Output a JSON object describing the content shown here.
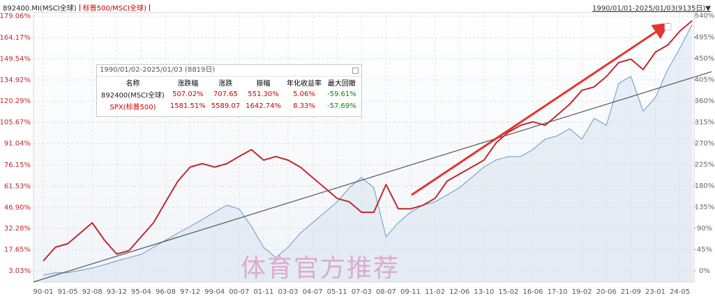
{
  "header": {
    "range": "1990/01/01-2025/01/03(9135日)▼"
  },
  "watermark": "体育官方推荐",
  "info_box": {
    "title": "1990/01/02-2025/01/03 (8819日)",
    "headers": [
      "名称",
      "涨跌幅",
      "涨跌",
      "振幅",
      "年化收益率",
      "最大回撤"
    ],
    "rows": [
      [
        "892400(MSCI全球)",
        "507.02%",
        "707.65",
        "551.30%",
        "5.06%",
        "-59.61%"
      ],
      [
        "SPX(标普500)",
        "1581.51%",
        "5589.07",
        "1642.74%",
        "8.33%",
        "-57.69%"
      ]
    ]
  },
  "chart_data": {
    "type": "line",
    "categories": [
      "90-01",
      null,
      "91-05",
      null,
      "92-08",
      null,
      "93-12",
      null,
      "95-04",
      null,
      "96-08",
      null,
      "97-12",
      null,
      "99-04",
      null,
      "00-07",
      null,
      "01-11",
      null,
      "03-03",
      null,
      "04-07",
      null,
      "05-11",
      null,
      "07-03",
      null,
      "08-07",
      null,
      "09-11",
      null,
      "11-02",
      null,
      "12-06",
      null,
      "13-10",
      null,
      "15-02",
      null,
      "16-06",
      null,
      "17-10",
      null,
      "19-02",
      null,
      "20-06",
      null,
      "21-09",
      null,
      "23-01",
      null,
      "24-05",
      null
    ],
    "series": [
      {
        "name": "892400.MI(MSCI全球)",
        "color": "#6f9fcf",
        "axis": "y2",
        "values": [
          -9,
          -4,
          -4,
          1,
          6,
          13,
          21,
          28,
          35,
          50,
          65,
          80,
          94,
          109,
          124,
          139,
          131,
          94,
          50,
          28,
          50,
          80,
          102,
          124,
          146,
          176,
          198,
          176,
          72,
          102,
          124,
          139,
          146,
          161,
          176,
          198,
          220,
          235,
          242,
          242,
          257,
          279,
          286,
          301,
          279,
          323,
          308,
          397,
          412,
          338,
          367,
          426,
          471,
          522
        ]
      },
      {
        "name": "标普500/MSCI全球)",
        "color": "#c0282d",
        "values": [
          9.8,
          19.4,
          21.8,
          29,
          36.2,
          24.2,
          14.6,
          17,
          26.6,
          36.2,
          50.7,
          65.1,
          74.7,
          77.1,
          74.7,
          77.1,
          82,
          86.8,
          79.5,
          82,
          79.5,
          74.7,
          67.5,
          60.3,
          53.1,
          50.7,
          43.5,
          43.5,
          62.7,
          45.9,
          45.9,
          48.3,
          53.1,
          65.1,
          69.9,
          74.7,
          79.5,
          91.6,
          98.8,
          103.6,
          106,
          103.6,
          110.8,
          118.1,
          127.7,
          130.1,
          137.3,
          146.9,
          149.3,
          142.1,
          154.1,
          159,
          168.6,
          175.8
        ]
      }
    ],
    "ylim": [
      -4.67,
      181.5
    ],
    "yticks": [
      {
        "value": 3.03,
        "label": "3.03%"
      },
      {
        "value": 17.65,
        "label": "17.65%"
      },
      {
        "value": 32.28,
        "label": "32.28%"
      },
      {
        "value": 46.9,
        "label": "46.90%"
      },
      {
        "value": 61.53,
        "label": "61.53%"
      },
      {
        "value": 76.15,
        "label": "76.15%"
      },
      {
        "value": 91.04,
        "label": "91.04%"
      },
      {
        "value": 105.67,
        "label": "105.67%"
      },
      {
        "value": 120.29,
        "label": "120.29%"
      },
      {
        "value": 134.92,
        "label": "134.92%"
      },
      {
        "value": 149.54,
        "label": "149.54%"
      },
      {
        "value": 164.17,
        "label": "164.17%"
      },
      {
        "value": 179.06,
        "label": "179.06%"
      }
    ],
    "y2lim": [
      -23.6,
      547
    ],
    "y2ticks": [
      {
        "value": 0,
        "label": "0%"
      },
      {
        "value": 45,
        "label": "45%"
      },
      {
        "value": 90,
        "label": "90%"
      },
      {
        "value": 135,
        "label": "135%"
      },
      {
        "value": 180,
        "label": "180%"
      },
      {
        "value": 225,
        "label": "225%"
      },
      {
        "value": 270,
        "label": "270%"
      },
      {
        "value": 315,
        "label": "315%"
      },
      {
        "value": 360,
        "label": "360%"
      },
      {
        "value": 405,
        "label": "405%"
      },
      {
        "value": 450,
        "label": "450%"
      },
      {
        "value": 495,
        "label": "495%"
      },
      {
        "value": 540,
        "label": "540%"
      }
    ],
    "grid": true
  }
}
